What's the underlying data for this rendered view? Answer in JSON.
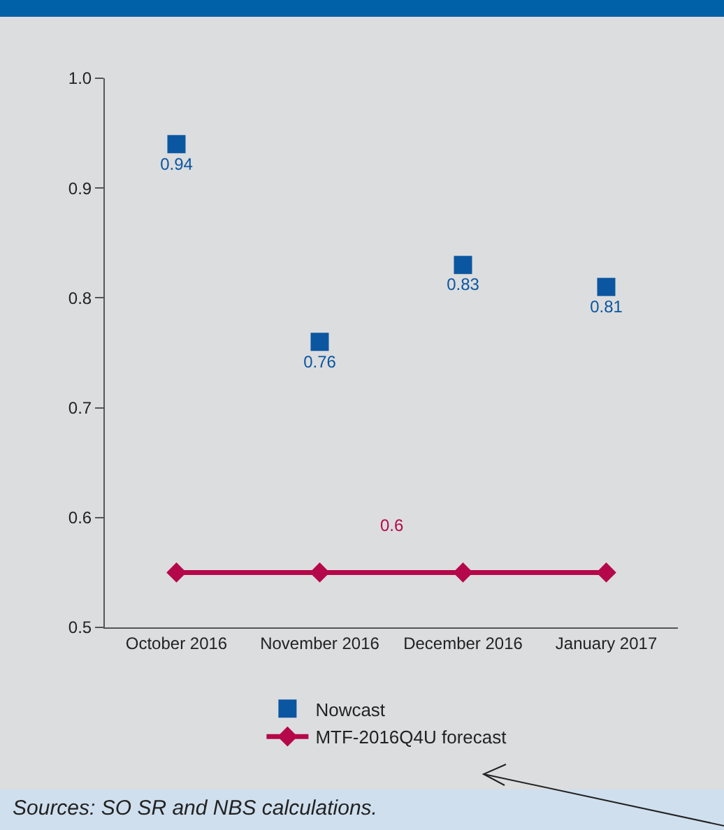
{
  "chart_data": {
    "type": "scatter",
    "categories": [
      "October 2016",
      "November 2016",
      "December 2016",
      "January 2017"
    ],
    "series": [
      {
        "name": "Nowcast",
        "marker": "square",
        "color": "#0b56a0",
        "values": [
          0.94,
          0.76,
          0.83,
          0.81
        ],
        "value_labels": [
          "0.94",
          "0.76",
          "0.83",
          "0.81"
        ]
      },
      {
        "name": "MTF-2016Q4U forecast",
        "type": "line",
        "marker": "diamond",
        "line_style": "solid",
        "color": "#b5084a",
        "values": [
          0.55,
          0.55,
          0.55,
          0.55
        ]
      }
    ],
    "ylim": [
      0.5,
      1.0
    ],
    "yticks": [
      0.5,
      0.6,
      0.7,
      0.8,
      0.9,
      {
        "value": 1.0,
        "label": "1.0"
      }
    ],
    "grid": false,
    "legend": "bottom",
    "annotations": [
      {
        "text": "0.6",
        "y": 0.55
      },
      "Sources: SO SR and NBS calculations."
    ]
  }
}
